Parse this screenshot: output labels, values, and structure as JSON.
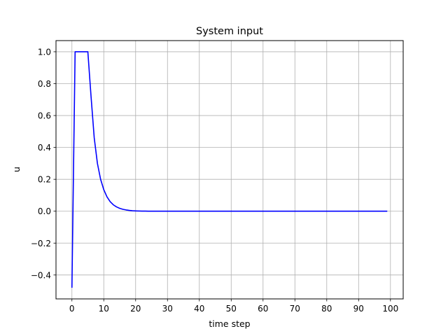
{
  "chart_data": {
    "type": "line",
    "title": "System input",
    "xlabel": "time step",
    "ylabel": "u",
    "xlim": [
      -5,
      104
    ],
    "ylim": [
      -0.55,
      1.07
    ],
    "xticks": [
      0,
      10,
      20,
      30,
      40,
      50,
      60,
      70,
      80,
      90,
      100
    ],
    "yticks": [
      -0.4,
      -0.2,
      0.0,
      0.2,
      0.4,
      0.6,
      0.8,
      1.0
    ],
    "xtick_labels": [
      "0",
      "10",
      "20",
      "30",
      "40",
      "50",
      "60",
      "70",
      "80",
      "90",
      "100"
    ],
    "ytick_labels": [
      "−0.4",
      "−0.2",
      "0.0",
      "0.2",
      "0.4",
      "0.6",
      "0.8",
      "1.0"
    ],
    "grid": true,
    "series": [
      {
        "color": "#0000ff",
        "x": [
          0,
          1,
          2,
          3,
          4,
          5,
          6,
          7,
          8,
          9,
          10,
          11,
          12,
          13,
          14,
          15,
          16,
          17,
          18,
          19,
          20,
          21,
          22,
          23,
          24,
          25,
          26,
          27,
          28,
          29,
          30,
          35,
          40,
          45,
          50,
          55,
          60,
          65,
          70,
          75,
          80,
          85,
          90,
          95,
          99
        ],
        "y": [
          -0.48,
          1.0,
          1.0,
          1.0,
          1.0,
          1.0,
          0.72,
          0.46,
          0.3,
          0.2,
          0.135,
          0.09,
          0.06,
          0.04,
          0.027,
          0.018,
          0.012,
          0.008,
          0.005,
          0.003,
          0.002,
          0.0013,
          0.0008,
          0.0005,
          0.0003,
          0.0002,
          0.0001,
          0.0,
          0.0,
          0.0,
          0.0,
          0.0,
          0.0,
          0.0,
          0.0,
          0.0,
          0.0,
          0.0,
          0.0,
          0.0,
          0.0,
          0.0,
          0.0,
          0.0,
          0.0
        ]
      }
    ]
  }
}
